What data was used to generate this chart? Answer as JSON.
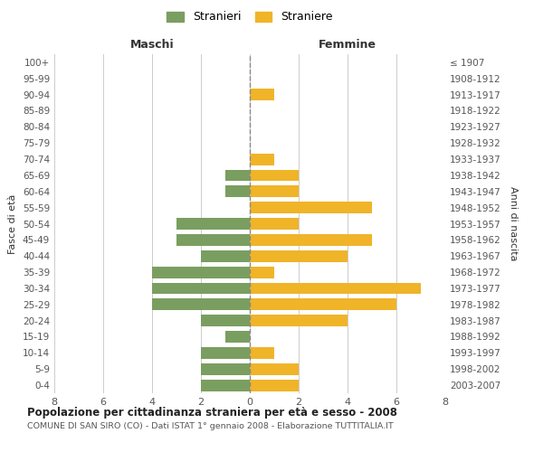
{
  "age_groups": [
    "100+",
    "95-99",
    "90-94",
    "85-89",
    "80-84",
    "75-79",
    "70-74",
    "65-69",
    "60-64",
    "55-59",
    "50-54",
    "45-49",
    "40-44",
    "35-39",
    "30-34",
    "25-29",
    "20-24",
    "15-19",
    "10-14",
    "5-9",
    "0-4"
  ],
  "birth_years": [
    "≤ 1907",
    "1908-1912",
    "1913-1917",
    "1918-1922",
    "1923-1927",
    "1928-1932",
    "1933-1937",
    "1938-1942",
    "1943-1947",
    "1948-1952",
    "1953-1957",
    "1958-1962",
    "1963-1967",
    "1968-1972",
    "1973-1977",
    "1978-1982",
    "1983-1987",
    "1988-1992",
    "1993-1997",
    "1998-2002",
    "2003-2007"
  ],
  "stranieri": [
    0,
    0,
    0,
    0,
    0,
    0,
    0,
    1,
    1,
    0,
    3,
    3,
    2,
    4,
    4,
    4,
    2,
    1,
    2,
    2,
    2
  ],
  "straniere": [
    0,
    0,
    1,
    0,
    0,
    0,
    1,
    2,
    2,
    5,
    2,
    5,
    4,
    1,
    7,
    6,
    4,
    0,
    1,
    2,
    2
  ],
  "male_color": "#7a9e60",
  "female_color": "#f0b429",
  "grid_color": "#cccccc",
  "center_line_color": "#888888",
  "bg_color": "#ffffff",
  "title": "Popolazione per cittadinanza straniera per età e sesso - 2008",
  "subtitle": "COMUNE DI SAN SIRO (CO) - Dati ISTAT 1° gennaio 2008 - Elaborazione TUTTITALIA.IT",
  "xlabel_left": "Maschi",
  "xlabel_right": "Femmine",
  "ylabel_left": "Fasce di età",
  "ylabel_right": "Anni di nascita",
  "legend_stranieri": "Stranieri",
  "legend_straniere": "Straniere",
  "xlim": 8
}
